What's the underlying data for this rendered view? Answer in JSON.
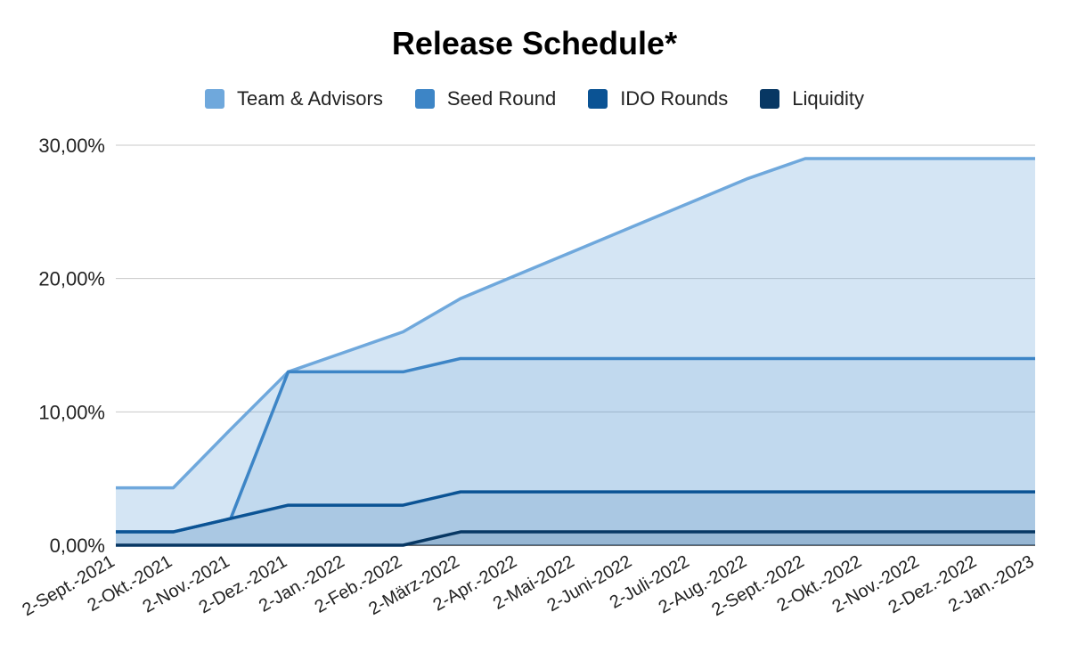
{
  "chart_data": {
    "type": "area",
    "title": "Release Schedule*",
    "xlabel": "",
    "ylabel": "",
    "ylim": [
      0,
      30
    ],
    "grid": true,
    "legend_position": "top",
    "yticks": [
      "0,00%",
      "10,00%",
      "20,00%",
      "30,00%"
    ],
    "categories": [
      "2-Sept.-2021",
      "2-Okt.-2021",
      "2-Nov.-2021",
      "2-Dez.-2021",
      "2-Jan.-2022",
      "2-Feb.-2022",
      "2-März-2022",
      "2-Apr.-2022",
      "2-Mai-2022",
      "2-Juni-2022",
      "2-Juli-2022",
      "2-Aug.-2022",
      "2-Sept.-2022",
      "2-Okt.-2022",
      "2-Nov.-2022",
      "2-Dez.-2022",
      "2-Jan.-2023"
    ],
    "series": [
      {
        "name": "Team & Advisors",
        "color": "#6fa8dc",
        "values": [
          4.3,
          4.3,
          8.7,
          13.0,
          14.5,
          16.0,
          18.5,
          20.3,
          22.1,
          23.9,
          25.7,
          27.5,
          29.0,
          29.0,
          29.0,
          29.0,
          29.0
        ]
      },
      {
        "name": "Seed Round",
        "color": "#3d85c6",
        "values": [
          1.0,
          1.0,
          2.0,
          13.0,
          13.0,
          13.0,
          14.0,
          14.0,
          14.0,
          14.0,
          14.0,
          14.0,
          14.0,
          14.0,
          14.0,
          14.0,
          14.0
        ]
      },
      {
        "name": "IDO Rounds",
        "color": "#0b5394",
        "values": [
          1.0,
          1.0,
          2.0,
          3.0,
          3.0,
          3.0,
          4.0,
          4.0,
          4.0,
          4.0,
          4.0,
          4.0,
          4.0,
          4.0,
          4.0,
          4.0,
          4.0
        ]
      },
      {
        "name": "Liquidity",
        "color": "#073763",
        "values": [
          0.0,
          0.0,
          0.0,
          0.0,
          0.0,
          0.0,
          1.0,
          1.0,
          1.0,
          1.0,
          1.0,
          1.0,
          1.0,
          1.0,
          1.0,
          1.0,
          1.0
        ]
      }
    ]
  }
}
